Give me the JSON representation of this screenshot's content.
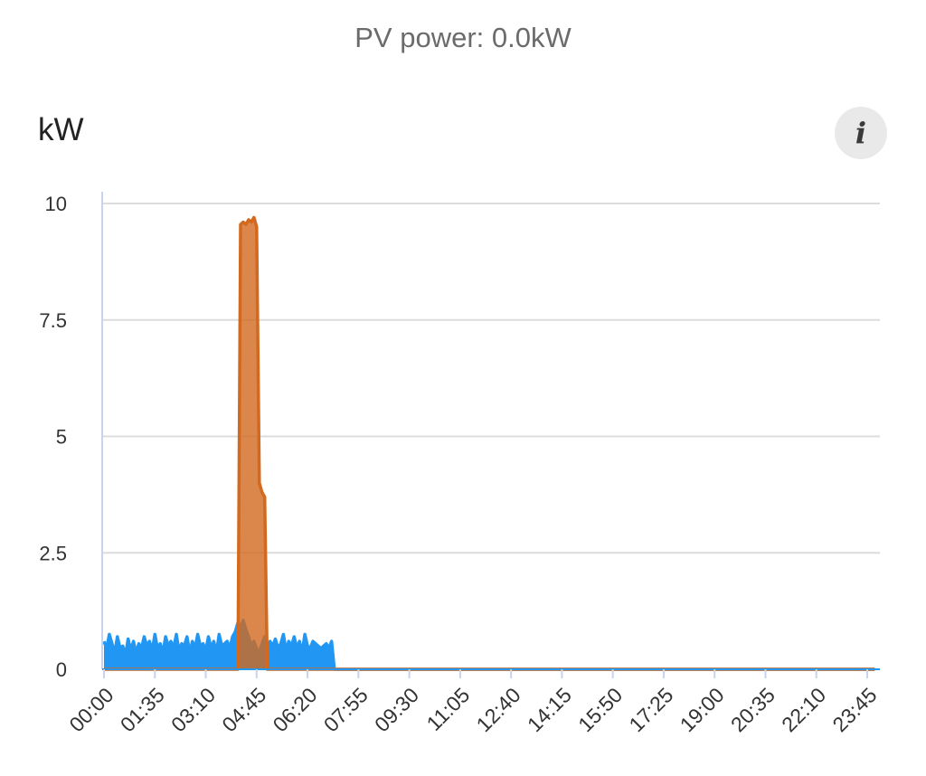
{
  "header": {
    "title": "PV power: 0.0kW"
  },
  "chart": {
    "unit_label": "kW",
    "info_icon": "info-icon",
    "info_glyph": "i"
  },
  "chart_data": {
    "type": "area",
    "xlabel": "",
    "ylabel": "kW",
    "ylim": [
      0,
      10
    ],
    "xlim_minutes": [
      0,
      1440
    ],
    "grid": true,
    "y_ticks": [
      "0",
      "2.5",
      "5",
      "7.5",
      "10"
    ],
    "x_ticks": [
      "00:00",
      "01:35",
      "03:10",
      "04:45",
      "06:20",
      "07:55",
      "09:30",
      "11:05",
      "12:40",
      "14:15",
      "15:50",
      "17:25",
      "19:00",
      "20:35",
      "22:10",
      "23:45"
    ],
    "series": [
      {
        "color": "#2196f3",
        "x": [
          "00:00",
          "00:05",
          "00:10",
          "00:15",
          "00:20",
          "00:25",
          "00:30",
          "00:35",
          "00:40",
          "00:45",
          "00:50",
          "00:55",
          "01:00",
          "01:05",
          "01:10",
          "01:15",
          "01:20",
          "01:25",
          "01:30",
          "01:35",
          "01:40",
          "01:45",
          "01:50",
          "01:55",
          "02:00",
          "02:05",
          "02:10",
          "02:15",
          "02:20",
          "02:25",
          "02:30",
          "02:35",
          "02:40",
          "02:45",
          "02:50",
          "02:55",
          "03:00",
          "03:05",
          "03:10",
          "03:15",
          "03:20",
          "03:25",
          "03:30",
          "03:35",
          "03:40",
          "03:45",
          "03:50",
          "03:55",
          "04:00",
          "04:05",
          "04:10",
          "04:15",
          "04:20",
          "04:25",
          "04:30",
          "04:35",
          "04:40",
          "04:45",
          "04:50",
          "04:55",
          "05:00",
          "05:05",
          "05:10",
          "05:15",
          "05:20",
          "05:25",
          "05:30",
          "05:35",
          "05:40",
          "05:45",
          "05:50",
          "05:55",
          "06:00",
          "06:05",
          "06:10",
          "06:15",
          "06:20",
          "06:25",
          "06:30",
          "06:35",
          "06:40",
          "06:45",
          "06:50",
          "06:55",
          "07:00",
          "07:05",
          "07:10",
          "07:15",
          "07:20",
          "07:25",
          "07:30",
          "23:59"
        ],
        "values": [
          0.6,
          0.45,
          0.75,
          0.55,
          0.35,
          0.7,
          0.45,
          0.5,
          0.3,
          0.65,
          0.4,
          0.6,
          0.35,
          0.55,
          0.45,
          0.7,
          0.5,
          0.6,
          0.4,
          0.75,
          0.45,
          0.55,
          0.35,
          0.7,
          0.5,
          0.6,
          0.45,
          0.75,
          0.4,
          0.55,
          0.5,
          0.7,
          0.35,
          0.6,
          0.45,
          0.75,
          0.5,
          0.55,
          0.4,
          0.7,
          0.45,
          0.6,
          0.35,
          0.75,
          0.5,
          0.55,
          0.6,
          0.45,
          0.7,
          0.8,
          1.0,
          0.9,
          1.05,
          0.85,
          0.7,
          0.5,
          0.6,
          0.45,
          0.35,
          0.55,
          0.7,
          0.4,
          0.6,
          0.5,
          0.65,
          0.45,
          0.55,
          0.75,
          0.4,
          0.6,
          0.5,
          0.7,
          0.45,
          0.6,
          0.35,
          0.75,
          0.5,
          0.45,
          0.6,
          0.55,
          0.5,
          0.45,
          0.5,
          0.55,
          0.45,
          0.6,
          0.0,
          0.0,
          0.0,
          0.0,
          0.0,
          0.0
        ]
      },
      {
        "color": "#d2691e",
        "x": [
          "00:00",
          "04:10",
          "04:15",
          "04:20",
          "04:25",
          "04:30",
          "04:35",
          "04:40",
          "04:45",
          "04:50",
          "04:55",
          "05:00",
          "05:05",
          "05:10",
          "05:15",
          "23:59"
        ],
        "values": [
          0.0,
          0.0,
          9.55,
          9.6,
          9.55,
          9.65,
          9.6,
          9.7,
          9.5,
          4.0,
          3.8,
          3.7,
          0.0,
          0.0,
          0.0,
          0.0
        ]
      }
    ]
  }
}
